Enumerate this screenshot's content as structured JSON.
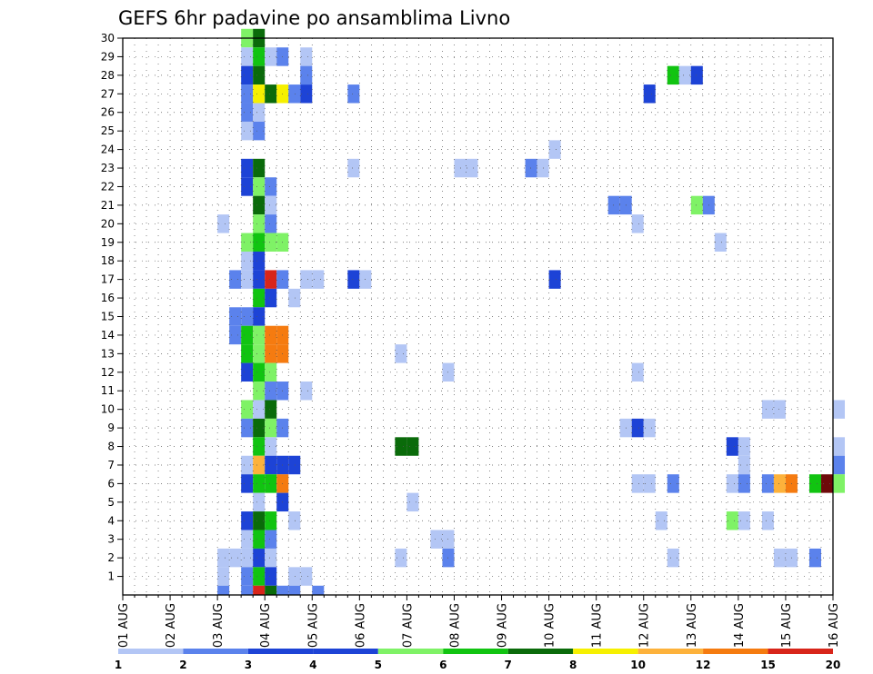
{
  "chart_data": {
    "type": "heatmap",
    "title": "GEFS 6hr padavine po ansamblima Livno",
    "xlabel": "",
    "ylabel": "",
    "x_ticks": [
      "01 AUG",
      "02 AUG",
      "03 AUG",
      "04 AUG",
      "05 AUG",
      "06 AUG",
      "07 AUG",
      "08 AUG",
      "09 AUG",
      "10 AUG",
      "11 AUG",
      "12 AUG",
      "13 AUG",
      "14 AUG",
      "15 AUG",
      "16 AUG"
    ],
    "x_step_hours": 6,
    "y_ticks": [
      1,
      2,
      3,
      4,
      5,
      6,
      7,
      8,
      9,
      10,
      11,
      12,
      13,
      14,
      15,
      16,
      17,
      18,
      19,
      20,
      21,
      22,
      23,
      24,
      25,
      26,
      27,
      28,
      29,
      30
    ],
    "y_range": [
      0,
      30
    ],
    "grid": true,
    "legend_position": "bottom",
    "legend": {
      "labels": [
        "1",
        "2",
        "3",
        "4",
        "5",
        "6",
        "7",
        "8",
        "10",
        "12",
        "15",
        "20"
      ],
      "colors": [
        "#b3c6f5",
        "#5b82ec",
        "#1d43d6",
        "#1d43d6",
        "#7ff266",
        "#11c411",
        "#0a6b0a",
        "#f6f000",
        "#fdb23b",
        "#f57b10",
        "#d8251a",
        "#6e0a0a"
      ]
    },
    "cells": [
      {
        "m": 30,
        "s": [
          [
            10,
            5
          ],
          [
            11,
            7
          ]
        ]
      },
      {
        "m": 29,
        "s": [
          [
            10,
            1
          ],
          [
            11,
            6
          ],
          [
            12,
            1
          ],
          [
            13,
            2
          ],
          [
            15,
            1
          ]
        ]
      },
      {
        "m": 28,
        "s": [
          [
            10,
            3
          ],
          [
            11,
            7
          ],
          [
            15,
            2
          ],
          [
            46,
            6
          ],
          [
            47,
            1
          ],
          [
            48,
            3
          ]
        ]
      },
      {
        "m": 27,
        "s": [
          [
            10,
            2
          ],
          [
            11,
            9
          ],
          [
            12,
            7
          ],
          [
            13,
            8
          ],
          [
            14,
            2
          ],
          [
            15,
            3
          ],
          [
            19,
            2
          ],
          [
            44,
            3
          ]
        ]
      },
      {
        "m": 26,
        "s": [
          [
            10,
            2
          ],
          [
            11,
            1
          ]
        ]
      },
      {
        "m": 25,
        "s": [
          [
            10,
            1
          ],
          [
            11,
            2
          ]
        ]
      },
      {
        "m": 24,
        "s": [
          [
            36,
            1
          ]
        ]
      },
      {
        "m": 23,
        "s": [
          [
            10,
            3
          ],
          [
            11,
            7
          ],
          [
            19,
            1
          ],
          [
            28,
            1
          ],
          [
            29,
            1
          ],
          [
            34,
            2
          ],
          [
            35,
            1
          ]
        ]
      },
      {
        "m": 22,
        "s": [
          [
            10,
            3
          ],
          [
            11,
            5
          ],
          [
            12,
            2
          ]
        ]
      },
      {
        "m": 21,
        "s": [
          [
            11,
            7
          ],
          [
            12,
            1
          ],
          [
            41,
            2
          ],
          [
            42,
            2
          ],
          [
            48,
            5
          ],
          [
            49,
            2
          ]
        ]
      },
      {
        "m": 20,
        "s": [
          [
            8,
            1
          ],
          [
            11,
            5
          ],
          [
            12,
            2
          ],
          [
            43,
            1
          ]
        ]
      },
      {
        "m": 19,
        "s": [
          [
            10,
            5
          ],
          [
            11,
            6
          ],
          [
            12,
            5
          ],
          [
            13,
            5
          ],
          [
            50,
            1
          ]
        ]
      },
      {
        "m": 18,
        "s": [
          [
            10,
            1
          ],
          [
            11,
            3
          ]
        ]
      },
      {
        "m": 17,
        "s": [
          [
            9,
            2
          ],
          [
            10,
            1
          ],
          [
            11,
            3
          ],
          [
            12,
            15
          ],
          [
            13,
            2
          ],
          [
            15,
            1
          ],
          [
            16,
            1
          ],
          [
            19,
            3
          ],
          [
            20,
            1
          ],
          [
            36,
            3
          ]
        ]
      },
      {
        "m": 16,
        "s": [
          [
            11,
            6
          ],
          [
            12,
            3
          ],
          [
            14,
            1
          ]
        ]
      },
      {
        "m": 15,
        "s": [
          [
            9,
            2
          ],
          [
            10,
            2
          ],
          [
            11,
            3
          ]
        ]
      },
      {
        "m": 14,
        "s": [
          [
            9,
            2
          ],
          [
            10,
            6
          ],
          [
            11,
            5
          ],
          [
            12,
            12
          ],
          [
            13,
            12
          ]
        ]
      },
      {
        "m": 13,
        "s": [
          [
            10,
            6
          ],
          [
            11,
            5
          ],
          [
            12,
            12
          ],
          [
            13,
            12
          ],
          [
            23,
            1
          ]
        ]
      },
      {
        "m": 12,
        "s": [
          [
            10,
            3
          ],
          [
            11,
            6
          ],
          [
            12,
            5
          ],
          [
            27,
            1
          ],
          [
            43,
            1
          ]
        ]
      },
      {
        "m": 11,
        "s": [
          [
            11,
            5
          ],
          [
            12,
            2
          ],
          [
            13,
            2
          ],
          [
            15,
            1
          ]
        ]
      },
      {
        "m": 10,
        "s": [
          [
            10,
            5
          ],
          [
            11,
            1
          ],
          [
            12,
            7
          ],
          [
            54,
            1
          ],
          [
            55,
            1
          ],
          [
            60,
            1
          ]
        ]
      },
      {
        "m": 9,
        "s": [
          [
            10,
            2
          ],
          [
            11,
            7
          ],
          [
            12,
            5
          ],
          [
            13,
            2
          ],
          [
            42,
            1
          ],
          [
            43,
            3
          ],
          [
            44,
            1
          ]
        ]
      },
      {
        "m": 8,
        "s": [
          [
            11,
            6
          ],
          [
            12,
            1
          ],
          [
            23,
            7
          ],
          [
            24,
            7
          ],
          [
            51,
            3
          ],
          [
            52,
            1
          ],
          [
            60,
            1
          ]
        ]
      },
      {
        "m": 7,
        "s": [
          [
            10,
            1
          ],
          [
            11,
            10
          ],
          [
            12,
            3
          ],
          [
            13,
            3
          ],
          [
            14,
            3
          ],
          [
            52,
            1
          ],
          [
            60,
            2
          ]
        ]
      },
      {
        "m": 6,
        "s": [
          [
            10,
            3
          ],
          [
            11,
            6
          ],
          [
            12,
            6
          ],
          [
            13,
            12
          ],
          [
            43,
            1
          ],
          [
            44,
            1
          ],
          [
            46,
            2
          ],
          [
            51,
            1
          ],
          [
            52,
            2
          ],
          [
            54,
            2
          ],
          [
            55,
            10
          ],
          [
            56,
            12
          ],
          [
            58,
            6
          ],
          [
            59,
            20
          ],
          [
            60,
            5
          ]
        ]
      },
      {
        "m": 5,
        "s": [
          [
            11,
            1
          ],
          [
            13,
            3
          ],
          [
            24,
            1
          ]
        ]
      },
      {
        "m": 4,
        "s": [
          [
            10,
            3
          ],
          [
            11,
            7
          ],
          [
            12,
            6
          ],
          [
            14,
            1
          ],
          [
            45,
            1
          ],
          [
            51,
            5
          ],
          [
            52,
            1
          ],
          [
            54,
            1
          ]
        ]
      },
      {
        "m": 3,
        "s": [
          [
            10,
            1
          ],
          [
            11,
            6
          ],
          [
            12,
            2
          ],
          [
            26,
            1
          ],
          [
            27,
            1
          ]
        ]
      },
      {
        "m": 2,
        "s": [
          [
            8,
            1
          ],
          [
            9,
            1
          ],
          [
            10,
            1
          ],
          [
            11,
            3
          ],
          [
            12,
            1
          ],
          [
            23,
            1
          ],
          [
            27,
            2
          ],
          [
            46,
            1
          ],
          [
            55,
            1
          ],
          [
            56,
            1
          ],
          [
            58,
            2
          ]
        ]
      },
      {
        "m": 1,
        "s": [
          [
            8,
            1
          ],
          [
            10,
            2
          ],
          [
            11,
            6
          ],
          [
            12,
            3
          ],
          [
            14,
            1
          ],
          [
            15,
            1
          ]
        ]
      },
      {
        "m": 0,
        "s": [
          [
            8,
            2
          ],
          [
            10,
            2
          ],
          [
            11,
            15
          ],
          [
            12,
            7
          ],
          [
            13,
            2
          ],
          [
            14,
            2
          ],
          [
            16,
            2
          ]
        ]
      }
    ]
  }
}
